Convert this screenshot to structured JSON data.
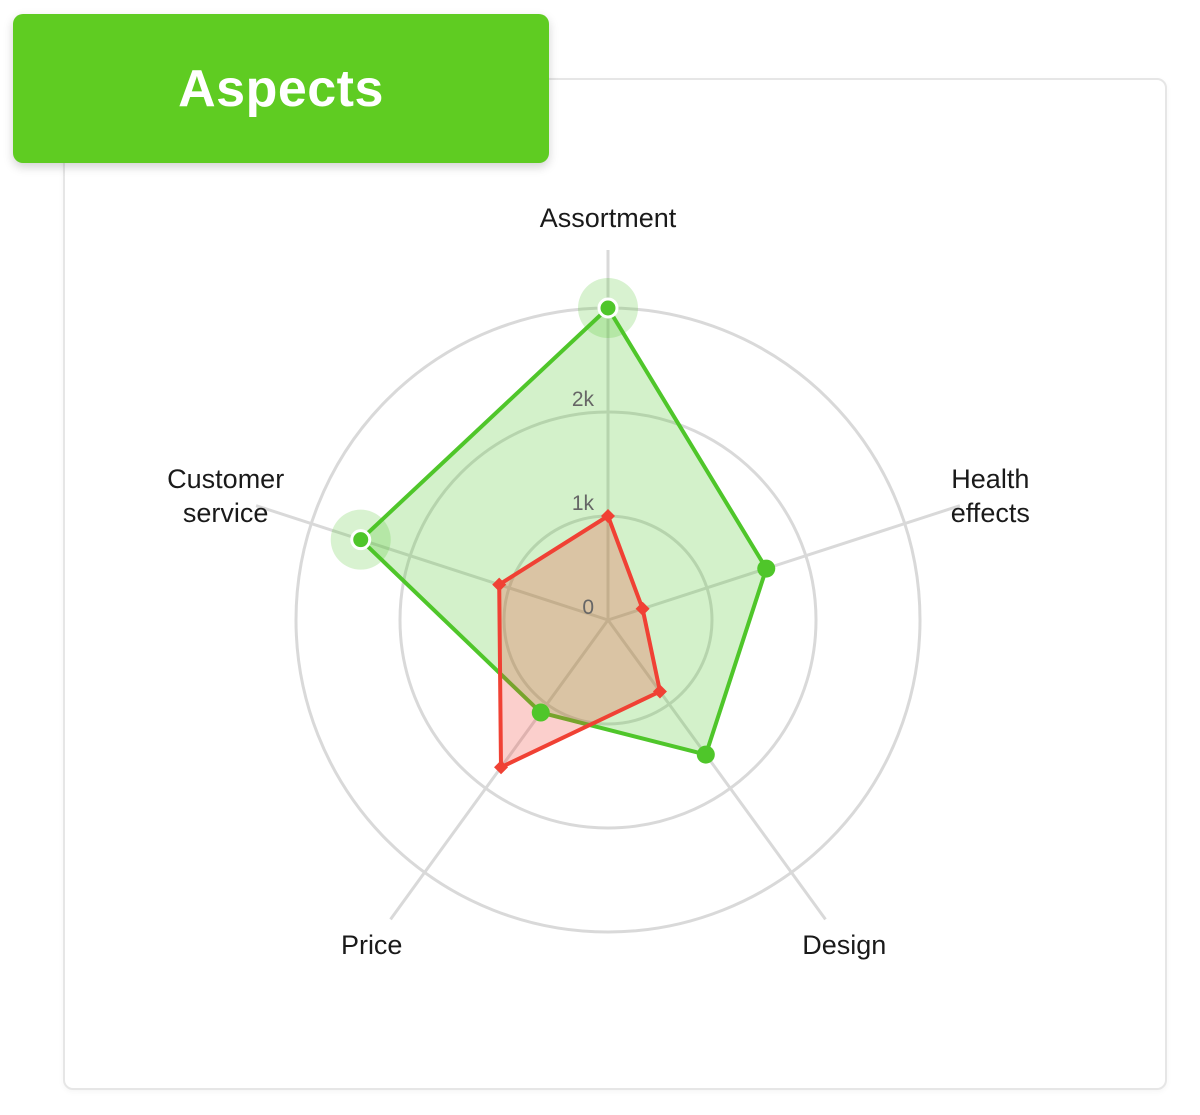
{
  "header": {
    "title": "Aspects"
  },
  "colors": {
    "header_bg": "#5fcc22",
    "grid": "#d9d9d9",
    "series_green": "#4fc62a",
    "series_red": "#f04134"
  },
  "chart_data": {
    "type": "radar",
    "title": "Aspects",
    "axes": [
      [
        "Assortment"
      ],
      [
        "Health",
        "effects"
      ],
      [
        "Design"
      ],
      [
        "Price"
      ],
      [
        "Customer",
        "service"
      ]
    ],
    "ticks": [
      "0",
      "1k",
      "2k"
    ],
    "tick_values": [
      0,
      1000,
      2000
    ],
    "rings": [
      1000,
      2000,
      3000
    ],
    "range": [
      0,
      3000
    ],
    "series": [
      {
        "values": [
          3000,
          1600,
          1600,
          1100,
          2500
        ],
        "color": "#4fc62a",
        "highlighted": [
          true,
          false,
          false,
          false,
          true
        ]
      },
      {
        "values": [
          1000,
          350,
          850,
          1750,
          1100
        ],
        "color": "#f04134"
      }
    ],
    "grid": true
  }
}
